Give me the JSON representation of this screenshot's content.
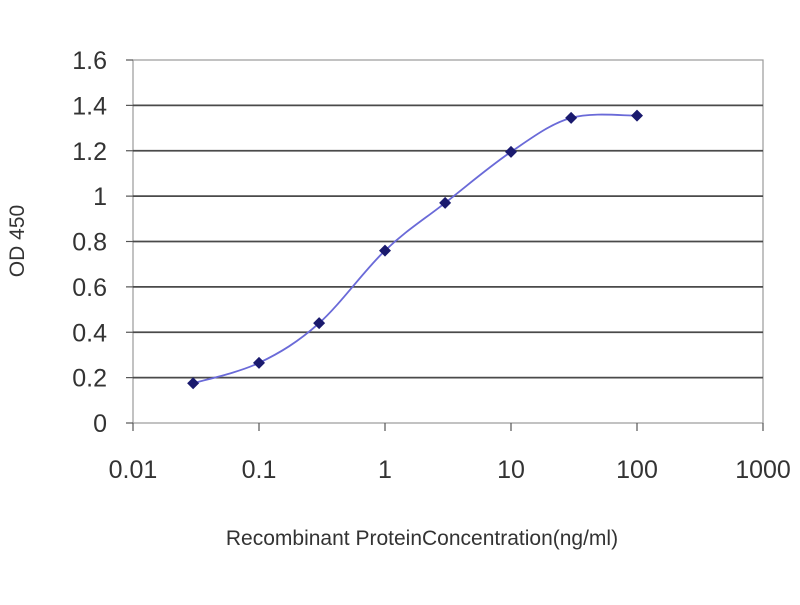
{
  "chart_data": {
    "type": "line",
    "xlabel": "Recombinant ProteinConcentration(ng/ml)",
    "ylabel": "OD 450",
    "x_scale": "log",
    "xlim": [
      0.01,
      1000
    ],
    "ylim": [
      0,
      1.6
    ],
    "x_ticks": [
      0.01,
      0.1,
      1,
      10,
      100,
      1000
    ],
    "x_tick_labels": [
      "0.01",
      "0.1",
      "1",
      "10",
      "100",
      "1000"
    ],
    "y_ticks": [
      0,
      0.2,
      0.4,
      0.6,
      0.8,
      1,
      1.2,
      1.4,
      1.6
    ],
    "y_tick_labels": [
      "0",
      "0.2",
      "0.4",
      "0.6",
      "0.8",
      "1",
      "1.2",
      "1.4",
      "1.6"
    ],
    "grid": "horizontal",
    "legend": "none",
    "series": [
      {
        "x": [
          0.03,
          0.1,
          0.3,
          1,
          3,
          10,
          30,
          100
        ],
        "y": [
          0.175,
          0.265,
          0.44,
          0.76,
          0.97,
          1.195,
          1.345,
          1.355
        ],
        "line_color": "#6a6ad8",
        "marker_color": "#1a1a6e"
      }
    ]
  }
}
